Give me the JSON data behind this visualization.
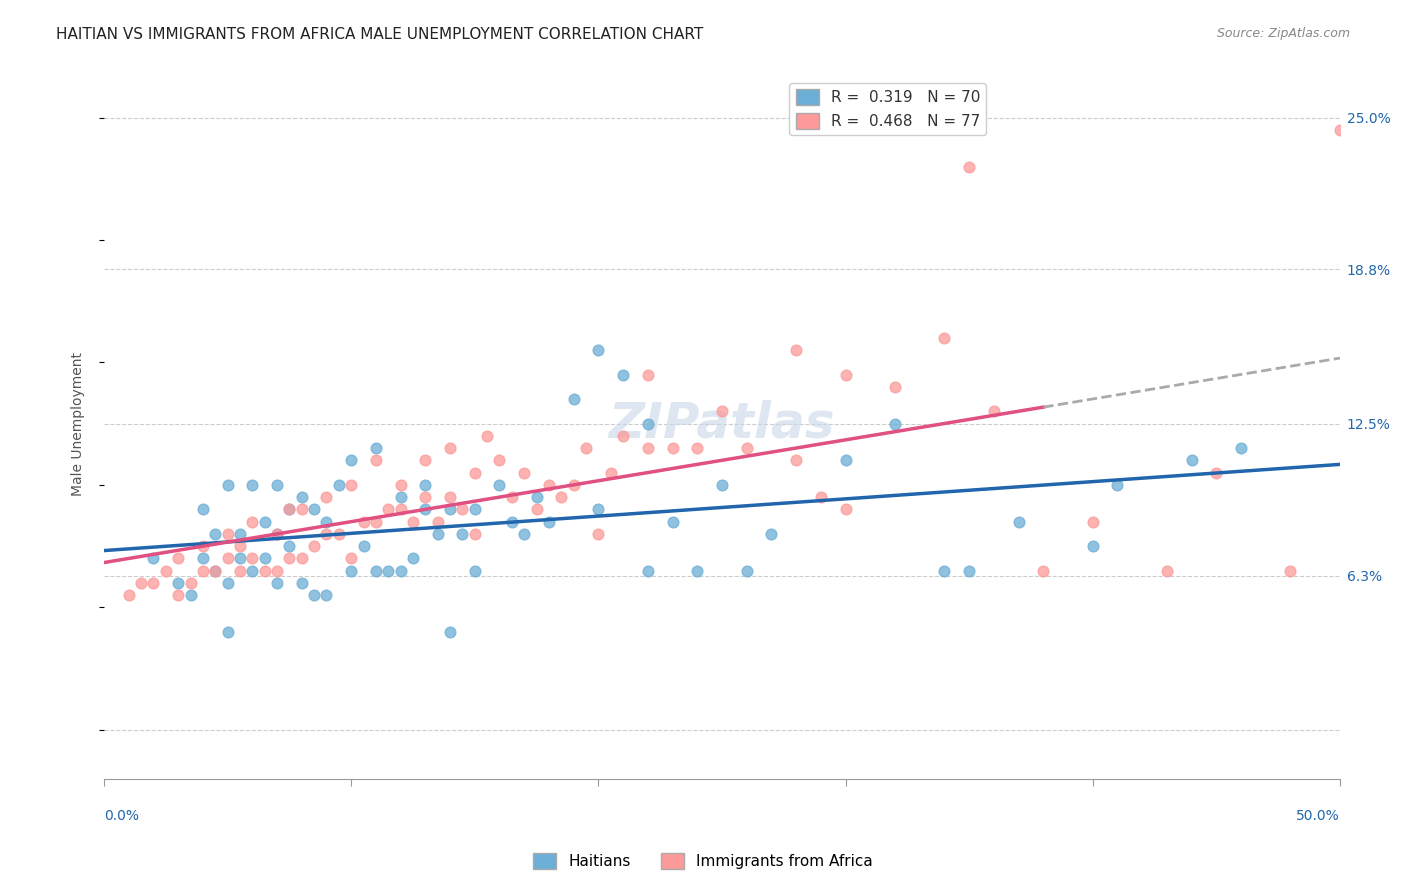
{
  "title": "HAITIAN VS IMMIGRANTS FROM AFRICA MALE UNEMPLOYMENT CORRELATION CHART",
  "source": "Source: ZipAtlas.com",
  "ylabel": "Male Unemployment",
  "ytick_vals": [
    0.0,
    0.063,
    0.125,
    0.188,
    0.25
  ],
  "ytick_labels": [
    "",
    "6.3%",
    "12.5%",
    "18.8%",
    "25.0%"
  ],
  "xmin": 0.0,
  "xmax": 0.5,
  "ymin": -0.02,
  "ymax": 0.27,
  "watermark": "ZIPatlas",
  "color_haiti": "#6baed6",
  "color_africa": "#fb9a99",
  "color_haiti_line": "#2166ac",
  "color_africa_line": "#e05080",
  "haitians_x": [
    0.02,
    0.03,
    0.035,
    0.04,
    0.04,
    0.045,
    0.045,
    0.05,
    0.05,
    0.05,
    0.055,
    0.055,
    0.06,
    0.06,
    0.065,
    0.065,
    0.07,
    0.07,
    0.07,
    0.075,
    0.075,
    0.08,
    0.08,
    0.085,
    0.085,
    0.09,
    0.09,
    0.095,
    0.1,
    0.1,
    0.105,
    0.11,
    0.11,
    0.115,
    0.12,
    0.12,
    0.125,
    0.13,
    0.13,
    0.135,
    0.14,
    0.14,
    0.145,
    0.15,
    0.15,
    0.16,
    0.165,
    0.17,
    0.175,
    0.18,
    0.19,
    0.2,
    0.2,
    0.21,
    0.22,
    0.22,
    0.23,
    0.24,
    0.25,
    0.26,
    0.27,
    0.3,
    0.32,
    0.34,
    0.35,
    0.37,
    0.4,
    0.41,
    0.44,
    0.46
  ],
  "haitians_y": [
    0.07,
    0.06,
    0.055,
    0.07,
    0.09,
    0.065,
    0.08,
    0.04,
    0.06,
    0.1,
    0.07,
    0.08,
    0.065,
    0.1,
    0.07,
    0.085,
    0.06,
    0.08,
    0.1,
    0.075,
    0.09,
    0.06,
    0.095,
    0.055,
    0.09,
    0.055,
    0.085,
    0.1,
    0.065,
    0.11,
    0.075,
    0.065,
    0.115,
    0.065,
    0.065,
    0.095,
    0.07,
    0.09,
    0.1,
    0.08,
    0.04,
    0.09,
    0.08,
    0.065,
    0.09,
    0.1,
    0.085,
    0.08,
    0.095,
    0.085,
    0.135,
    0.09,
    0.155,
    0.145,
    0.065,
    0.125,
    0.085,
    0.065,
    0.1,
    0.065,
    0.08,
    0.11,
    0.125,
    0.065,
    0.065,
    0.085,
    0.075,
    0.1,
    0.11,
    0.115
  ],
  "africa_x": [
    0.01,
    0.015,
    0.02,
    0.025,
    0.03,
    0.03,
    0.035,
    0.04,
    0.04,
    0.045,
    0.05,
    0.05,
    0.055,
    0.055,
    0.06,
    0.06,
    0.065,
    0.07,
    0.07,
    0.075,
    0.075,
    0.08,
    0.08,
    0.085,
    0.09,
    0.09,
    0.095,
    0.1,
    0.1,
    0.105,
    0.11,
    0.11,
    0.115,
    0.12,
    0.12,
    0.125,
    0.13,
    0.13,
    0.135,
    0.14,
    0.14,
    0.145,
    0.15,
    0.15,
    0.155,
    0.16,
    0.165,
    0.17,
    0.175,
    0.18,
    0.185,
    0.19,
    0.195,
    0.2,
    0.205,
    0.21,
    0.22,
    0.23,
    0.24,
    0.25,
    0.26,
    0.28,
    0.29,
    0.3,
    0.22,
    0.28,
    0.3,
    0.32,
    0.34,
    0.36,
    0.38,
    0.4,
    0.43,
    0.45,
    0.48,
    0.35,
    0.5
  ],
  "africa_y": [
    0.055,
    0.06,
    0.06,
    0.065,
    0.055,
    0.07,
    0.06,
    0.065,
    0.075,
    0.065,
    0.07,
    0.08,
    0.065,
    0.075,
    0.07,
    0.085,
    0.065,
    0.065,
    0.08,
    0.07,
    0.09,
    0.07,
    0.09,
    0.075,
    0.08,
    0.095,
    0.08,
    0.07,
    0.1,
    0.085,
    0.085,
    0.11,
    0.09,
    0.09,
    0.1,
    0.085,
    0.095,
    0.11,
    0.085,
    0.095,
    0.115,
    0.09,
    0.08,
    0.105,
    0.12,
    0.11,
    0.095,
    0.105,
    0.09,
    0.1,
    0.095,
    0.1,
    0.115,
    0.08,
    0.105,
    0.12,
    0.115,
    0.115,
    0.115,
    0.13,
    0.115,
    0.11,
    0.095,
    0.09,
    0.145,
    0.155,
    0.145,
    0.14,
    0.16,
    0.13,
    0.065,
    0.085,
    0.065,
    0.105,
    0.065,
    0.23,
    0.245
  ],
  "title_fontsize": 11,
  "source_fontsize": 9,
  "axis_label_fontsize": 10,
  "tick_label_fontsize": 10,
  "legend_fontsize": 11,
  "watermark_fontsize": 36
}
